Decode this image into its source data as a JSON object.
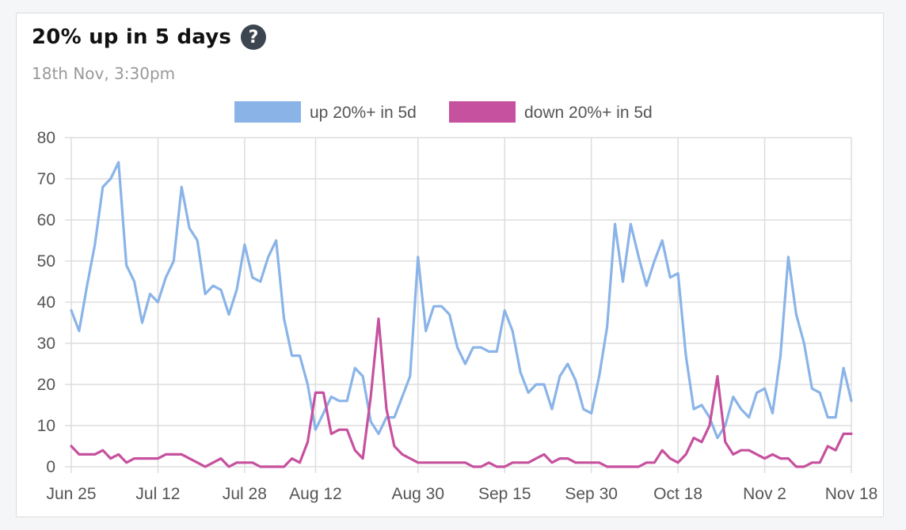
{
  "header": {
    "title": "20% up in 5 days",
    "subtitle": "18th Nov, 3:30pm",
    "help_icon": "question-circle-icon"
  },
  "chart_data": {
    "type": "line",
    "title": "20% up in 5 days",
    "subtitle": "18th Nov, 3:30pm",
    "xlabel": "",
    "ylabel": "",
    "ylim": [
      0,
      80
    ],
    "yticks": [
      0,
      10,
      20,
      30,
      40,
      50,
      60,
      70,
      80
    ],
    "grid": true,
    "legend_position": "top-center",
    "x_tick_labels": [
      "Jun 25",
      "Jul 12",
      "Jul 28",
      "Aug 12",
      "Aug 30",
      "Sep 15",
      "Sep 30",
      "Oct 18",
      "Nov 2",
      "Nov 18"
    ],
    "x_tick_index": [
      0,
      11,
      22,
      31,
      44,
      55,
      66,
      77,
      88,
      99
    ],
    "series": [
      {
        "name": "up 20%+ in 5d",
        "color": "#8ab4e8",
        "values": [
          38,
          33,
          44,
          54,
          68,
          70,
          74,
          49,
          45,
          35,
          42,
          40,
          46,
          50,
          68,
          58,
          55,
          42,
          44,
          43,
          37,
          43,
          54,
          46,
          45,
          51,
          55,
          36,
          27,
          27,
          20,
          9,
          13,
          17,
          16,
          16,
          24,
          22,
          11,
          8,
          12,
          12,
          17,
          22,
          51,
          33,
          39,
          39,
          37,
          29,
          25,
          29,
          29,
          28,
          28,
          38,
          33,
          23,
          18,
          20,
          20,
          14,
          22,
          25,
          21,
          14,
          13,
          22,
          34,
          59,
          45,
          59,
          51,
          44,
          50,
          55,
          46,
          47,
          27,
          14,
          15,
          12,
          7,
          10,
          17,
          14,
          12,
          18,
          19,
          13,
          27,
          51,
          37,
          30,
          19,
          18,
          12,
          12,
          24,
          16
        ]
      },
      {
        "name": "down 20%+ in 5d",
        "color": "#c6519e",
        "values": [
          5,
          3,
          3,
          3,
          4,
          2,
          3,
          1,
          2,
          2,
          2,
          2,
          3,
          3,
          3,
          2,
          1,
          0,
          1,
          2,
          0,
          1,
          1,
          1,
          0,
          0,
          0,
          0,
          2,
          1,
          6,
          18,
          18,
          8,
          9,
          9,
          4,
          2,
          17,
          36,
          14,
          5,
          3,
          2,
          1,
          1,
          1,
          1,
          1,
          1,
          1,
          0,
          0,
          1,
          0,
          0,
          1,
          1,
          1,
          2,
          3,
          1,
          2,
          2,
          1,
          1,
          1,
          1,
          0,
          0,
          0,
          0,
          0,
          1,
          1,
          4,
          2,
          1,
          3,
          7,
          6,
          10,
          22,
          6,
          3,
          4,
          4,
          3,
          2,
          3,
          2,
          2,
          0,
          0,
          1,
          1,
          5,
          4,
          8,
          8
        ]
      }
    ]
  }
}
